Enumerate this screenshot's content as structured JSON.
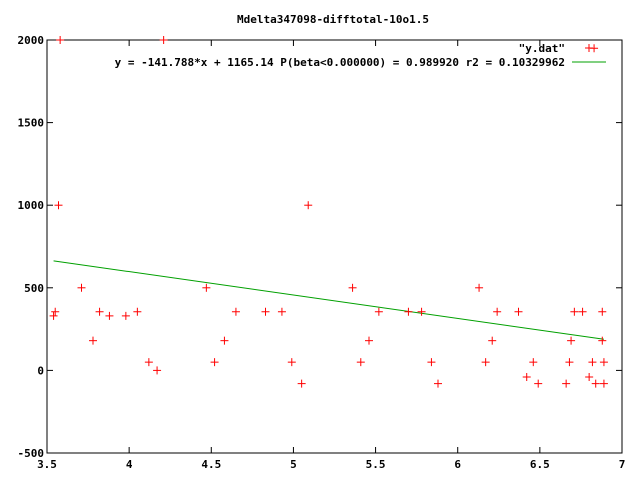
{
  "chart_data": {
    "type": "scatter",
    "title": "Mdelta347098-difftotal-10o1.5",
    "xlabel": "",
    "ylabel": "",
    "xlim": [
      3.5,
      7
    ],
    "ylim": [
      -500,
      2000
    ],
    "xticks": [
      "3.5",
      "4",
      "4.5",
      "5",
      "5.5",
      "6",
      "6.5",
      "7"
    ],
    "yticks": [
      "-500",
      "0",
      "500",
      "1000",
      "1500",
      "2000"
    ],
    "grid": false,
    "legend_position": "top-right",
    "series": [
      {
        "name": "\"y.dat\"",
        "marker": "plus",
        "color": "#ff0000",
        "points": [
          [
            3.54,
            330
          ],
          [
            3.55,
            355
          ],
          [
            3.57,
            1000
          ],
          [
            3.58,
            2000
          ],
          [
            3.71,
            500
          ],
          [
            3.78,
            180
          ],
          [
            3.82,
            355
          ],
          [
            3.88,
            330
          ],
          [
            3.98,
            330
          ],
          [
            4.05,
            355
          ],
          [
            4.12,
            50
          ],
          [
            4.17,
            0
          ],
          [
            4.21,
            2000
          ],
          [
            4.47,
            500
          ],
          [
            4.52,
            50
          ],
          [
            4.58,
            180
          ],
          [
            4.65,
            355
          ],
          [
            4.83,
            355
          ],
          [
            4.93,
            355
          ],
          [
            4.99,
            50
          ],
          [
            5.05,
            -80
          ],
          [
            5.09,
            1000
          ],
          [
            5.36,
            500
          ],
          [
            5.41,
            50
          ],
          [
            5.46,
            180
          ],
          [
            5.52,
            355
          ],
          [
            5.7,
            355
          ],
          [
            5.78,
            355
          ],
          [
            5.84,
            50
          ],
          [
            5.88,
            -80
          ],
          [
            6.13,
            500
          ],
          [
            6.17,
            50
          ],
          [
            6.21,
            180
          ],
          [
            6.24,
            355
          ],
          [
            6.37,
            355
          ],
          [
            6.42,
            -40
          ],
          [
            6.46,
            50
          ],
          [
            6.49,
            -80
          ],
          [
            6.66,
            -80
          ],
          [
            6.68,
            50
          ],
          [
            6.69,
            180
          ],
          [
            6.71,
            355
          ],
          [
            6.76,
            355
          ],
          [
            6.8,
            -40
          ],
          [
            6.82,
            50
          ],
          [
            6.83,
            1950
          ],
          [
            6.84,
            -80
          ],
          [
            6.88,
            355
          ],
          [
            6.88,
            180
          ],
          [
            6.89,
            50
          ],
          [
            6.89,
            -80
          ]
        ]
      },
      {
        "name": "y = -141.788*x + 1165.14 P(beta<0.000000) = 0.989920 r2 = 0.10329962",
        "type": "line",
        "color": "#00a000",
        "slope": -141.788,
        "intercept": 1165.14,
        "x_range": [
          3.54,
          6.89
        ]
      }
    ]
  }
}
